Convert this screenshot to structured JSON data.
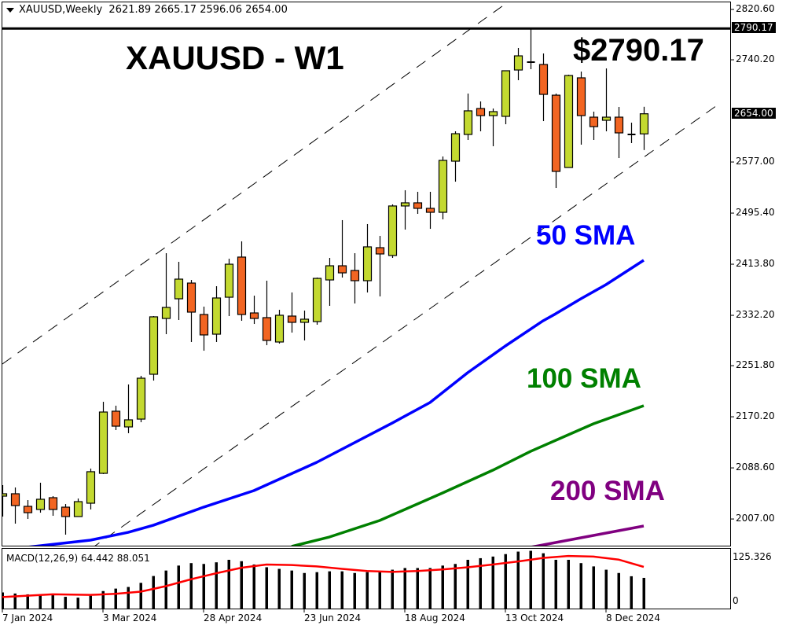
{
  "header": {
    "symbol_timeframe": "XAUUSD,Weekly",
    "ohlc": "2621.89 2665.17 2596.06 2654.00"
  },
  "annotations": {
    "title": "XAUUSD - W1",
    "high_label": "$2790.17",
    "sma50_label": "50 SMA",
    "sma100_label": "100 SMA",
    "sma200_label": "200 SMA"
  },
  "colors": {
    "bull": "#c3d930",
    "bear": "#f26522",
    "sma50": "#0000ff",
    "sma100": "#008000",
    "sma200": "#800080",
    "macd_signal": "#ff0000",
    "macd_hist": "#000000"
  },
  "chart_data": {
    "type": "candlestick",
    "timeframe": "Weekly",
    "ylim": [
      1962,
      2830
    ],
    "y_ticks": [
      "2820.60",
      "2740.20",
      "2577.00",
      "2495.40",
      "2413.80",
      "2332.20",
      "2251.80",
      "2170.20",
      "2088.60",
      "2007.00"
    ],
    "current_price": "2654.00",
    "high_line": "2790.17",
    "x_ticks": [
      {
        "date": "2024-01-07",
        "label": "7 Jan 2024"
      },
      {
        "date": "2024-03-03",
        "label": "3 Mar 2024"
      },
      {
        "date": "2024-04-28",
        "label": "28 Apr 2024"
      },
      {
        "date": "2024-06-23",
        "label": "23 Jun 2024"
      },
      {
        "date": "2024-08-18",
        "label": "18 Aug 2024"
      },
      {
        "date": "2024-10-13",
        "label": "13 Oct 2024"
      },
      {
        "date": "2024-12-08",
        "label": "8 Dec 2024"
      }
    ],
    "candles_columns": [
      "date",
      "open",
      "high",
      "low",
      "close"
    ],
    "candles": [
      [
        "2024-01-07",
        2043.5,
        2061.1,
        2010.9,
        2047.3
      ],
      [
        "2024-01-14",
        2047.3,
        2057.3,
        1999.6,
        2028.4
      ],
      [
        "2024-01-21",
        2027.2,
        2037.2,
        2007.1,
        2017.1
      ],
      [
        "2024-01-28",
        2022.2,
        2064.9,
        2017.1,
        2038.5
      ],
      [
        "2024-02-04",
        2041.0,
        2043.5,
        2012.1,
        2022.2
      ],
      [
        "2024-02-11",
        2025.9,
        2030.9,
        1982.0,
        2010.9
      ],
      [
        "2024-02-18",
        2010.9,
        2039.7,
        2010.9,
        2034.7
      ],
      [
        "2024-02-25",
        2032.2,
        2087.5,
        2022.2,
        2082.5
      ],
      [
        "2024-03-03",
        2079.9,
        2194.1,
        2078.7,
        2177.8
      ],
      [
        "2024-03-10",
        2179.1,
        2187.9,
        2149.0,
        2155.2
      ],
      [
        "2024-03-17",
        2154.0,
        2221.8,
        2144.0,
        2165.3
      ],
      [
        "2024-03-24",
        2166.5,
        2235.6,
        2161.5,
        2231.8
      ],
      [
        "2024-03-31",
        2238.1,
        2331.0,
        2228.0,
        2329.8
      ],
      [
        "2024-04-07",
        2327.2,
        2431.4,
        2302.1,
        2344.8
      ],
      [
        "2024-04-14",
        2358.6,
        2417.6,
        2324.7,
        2390.0
      ],
      [
        "2024-04-21",
        2383.7,
        2388.7,
        2289.6,
        2337.3
      ],
      [
        "2024-04-28",
        2333.5,
        2346.1,
        2275.7,
        2300.9
      ],
      [
        "2024-05-05",
        2302.1,
        2378.7,
        2289.6,
        2359.9
      ],
      [
        "2024-05-12",
        2361.1,
        2422.6,
        2331.0,
        2413.8
      ],
      [
        "2024-05-19",
        2425.2,
        2450.3,
        2323.5,
        2333.5
      ],
      [
        "2024-05-26",
        2336.0,
        2363.6,
        2318.4,
        2327.2
      ],
      [
        "2024-06-02",
        2328.5,
        2387.5,
        2284.5,
        2292.1
      ],
      [
        "2024-06-09",
        2289.6,
        2341.0,
        2287.1,
        2332.3
      ],
      [
        "2024-06-16",
        2331.0,
        2368.7,
        2304.6,
        2321.0
      ],
      [
        "2024-06-23",
        2321.0,
        2339.8,
        2292.1,
        2326.0
      ],
      [
        "2024-06-30",
        2322.2,
        2392.5,
        2317.2,
        2391.2
      ],
      [
        "2024-07-07",
        2388.7,
        2423.9,
        2347.3,
        2411.3
      ],
      [
        "2024-07-14",
        2411.3,
        2484.2,
        2392.5,
        2400.0
      ],
      [
        "2024-07-21",
        2403.8,
        2431.4,
        2351.1,
        2387.5
      ],
      [
        "2024-07-28",
        2387.5,
        2477.9,
        2368.7,
        2441.5
      ],
      [
        "2024-08-04",
        2440.2,
        2459.0,
        2362.4,
        2430.2
      ],
      [
        "2024-08-11",
        2427.7,
        2509.3,
        2423.9,
        2506.8
      ],
      [
        "2024-08-18",
        2506.8,
        2531.9,
        2469.1,
        2511.8
      ],
      [
        "2024-08-25",
        2511.8,
        2529.4,
        2494.2,
        2503.0
      ],
      [
        "2024-09-01",
        2503.0,
        2529.4,
        2470.3,
        2496.7
      ],
      [
        "2024-09-08",
        2496.7,
        2585.8,
        2485.4,
        2579.6
      ],
      [
        "2024-09-15",
        2578.3,
        2626.0,
        2545.6,
        2622.2
      ],
      [
        "2024-09-22",
        2621.0,
        2686.3,
        2612.2,
        2658.7
      ],
      [
        "2024-09-29",
        2662.4,
        2673.7,
        2626.0,
        2651.1
      ],
      [
        "2024-10-06",
        2651.1,
        2662.4,
        2602.2,
        2657.4
      ],
      [
        "2024-10-13",
        2649.9,
        2722.7,
        2637.3,
        2722.7
      ],
      [
        "2024-10-20",
        2723.9,
        2759.1,
        2707.6,
        2746.5
      ],
      [
        "2024-10-27",
        2736.5,
        2790.17,
        2725.2,
        2735.2
      ],
      [
        "2024-11-03",
        2732.7,
        2750.3,
        2642.3,
        2685.0
      ],
      [
        "2024-11-10",
        2683.7,
        2686.3,
        2535.6,
        2562.0
      ],
      [
        "2024-11-17",
        2568.2,
        2716.4,
        2568.2,
        2715.1
      ],
      [
        "2024-11-24",
        2711.4,
        2721.4,
        2604.7,
        2651.1
      ],
      [
        "2024-12-01",
        2648.6,
        2657.4,
        2612.2,
        2633.5
      ],
      [
        "2024-12-08",
        2643.6,
        2726.4,
        2626.0,
        2648.6
      ],
      [
        "2024-12-15",
        2648.6,
        2664.9,
        2583.3,
        2623.5
      ],
      [
        "2024-12-22",
        2621.0,
        2639.8,
        2607.2,
        2621.0
      ],
      [
        "2024-12-29",
        2621.89,
        2665.17,
        2596.06,
        2654.0
      ]
    ],
    "sma": [
      {
        "name": "50 SMA",
        "points": [
          [
            "2024-01-21",
            1962.0
          ],
          [
            "2024-02-25",
            1973.2
          ],
          [
            "2024-03-17",
            1985.7
          ],
          [
            "2024-03-31",
            1997.0
          ],
          [
            "2024-04-28",
            2025.9
          ],
          [
            "2024-05-26",
            2052.3
          ],
          [
            "2024-06-30",
            2097.5
          ],
          [
            "2024-08-11",
            2160.2
          ],
          [
            "2024-09-01",
            2192.9
          ],
          [
            "2024-09-22",
            2240.6
          ],
          [
            "2024-10-13",
            2283.3
          ],
          [
            "2024-11-03",
            2323.5
          ],
          [
            "2024-11-10",
            2334.7
          ],
          [
            "2024-11-24",
            2358.6
          ],
          [
            "2024-12-08",
            2381.2
          ],
          [
            "2024-12-29",
            2420.1
          ]
        ]
      },
      {
        "name": "100 SMA",
        "points": [
          [
            "2024-06-16",
            1963.2
          ],
          [
            "2024-07-07",
            1978.2
          ],
          [
            "2024-08-04",
            2004.6
          ],
          [
            "2024-09-08",
            2048.5
          ],
          [
            "2024-10-06",
            2084.9
          ],
          [
            "2024-10-27",
            2115.0
          ],
          [
            "2024-11-17",
            2141.4
          ],
          [
            "2024-12-01",
            2159.0
          ],
          [
            "2024-12-29",
            2187.9
          ]
        ]
      },
      {
        "name": "200 SMA",
        "points": [
          [
            "2024-10-27",
            1961.9
          ],
          [
            "2024-11-17",
            1973.2
          ],
          [
            "2024-12-01",
            1980.7
          ],
          [
            "2024-12-29",
            1995.8
          ]
        ]
      }
    ],
    "channel_lines": [
      {
        "points": [
          [
            "2024-01-07",
            2254.4
          ],
          [
            "2024-10-13",
            2829.4
          ]
        ]
      },
      {
        "points": [
          [
            "2024-02-25",
            1958.8
          ],
          [
            "2025-02-09",
            2669.9
          ]
        ]
      }
    ],
    "macd": {
      "label": "MACD(12,26,9) 64.442 88.051",
      "ylim": [
        0,
        125.326
      ],
      "y_ticks": [
        "125.326",
        "0"
      ],
      "histogram": [
        33.0,
        30.7,
        28.9,
        28.9,
        28.9,
        23.6,
        21.8,
        26.0,
        36.0,
        41.3,
        44.8,
        53.7,
        68.4,
        80.2,
        90.9,
        96.2,
        94.4,
        97.9,
        103.3,
        100.3,
        93.2,
        87.3,
        83.8,
        80.2,
        74.9,
        76.7,
        78.5,
        78.5,
        74.9,
        76.7,
        78.5,
        82.0,
        85.6,
        85.6,
        85.6,
        90.9,
        94.4,
        103.3,
        106.8,
        110.3,
        115.6,
        121.0,
        122.7,
        117.4,
        103.3,
        103.3,
        96.2,
        89.1,
        82.0,
        74.9,
        67.9,
        64.442
      ],
      "signal": [
        [
          "2024-01-07",
          23.0
        ],
        [
          "2024-02-04",
          28.9
        ],
        [
          "2024-02-25",
          27.7
        ],
        [
          "2024-03-10",
          30.1
        ],
        [
          "2024-03-24",
          34.8
        ],
        [
          "2024-04-07",
          46.6
        ],
        [
          "2024-04-21",
          61.4
        ],
        [
          "2024-05-05",
          74.3
        ],
        [
          "2024-05-19",
          86.1
        ],
        [
          "2024-06-02",
          93.2
        ],
        [
          "2024-06-16",
          92.0
        ],
        [
          "2024-06-30",
          89.1
        ],
        [
          "2024-07-14",
          83.8
        ],
        [
          "2024-07-28",
          79.1
        ],
        [
          "2024-08-11",
          77.3
        ],
        [
          "2024-08-25",
          79.1
        ],
        [
          "2024-09-08",
          82.6
        ],
        [
          "2024-09-22",
          87.3
        ],
        [
          "2024-10-06",
          93.2
        ],
        [
          "2024-10-20",
          99.7
        ],
        [
          "2024-11-03",
          107.4
        ],
        [
          "2024-11-17",
          111.5
        ],
        [
          "2024-12-01",
          110.3
        ],
        [
          "2024-12-15",
          103.8
        ],
        [
          "2024-12-29",
          88.051
        ]
      ]
    }
  }
}
